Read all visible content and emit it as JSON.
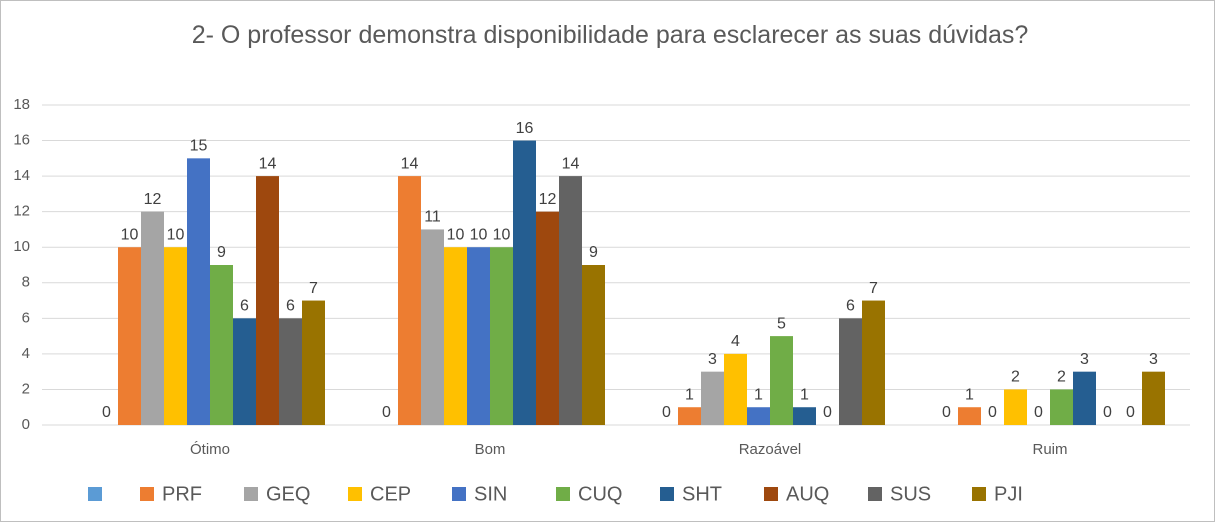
{
  "chart_data": {
    "type": "bar",
    "title": "2- O professor demonstra disponibilidade para esclarecer as suas dúvidas?",
    "categories": [
      "Ótimo",
      "Bom",
      "Razoável",
      "Ruim"
    ],
    "ylim": [
      0,
      18
    ],
    "yticks": [
      0,
      2,
      4,
      6,
      8,
      10,
      12,
      14,
      16,
      18
    ],
    "grid": true,
    "series": [
      {
        "color": "#5b9bd5",
        "values": [
          0,
          0,
          0,
          0
        ]
      },
      {
        "name": "PRF",
        "color": "#ed7d31",
        "values": [
          10,
          14,
          1,
          1
        ]
      },
      {
        "name": "GEQ",
        "color": "#a5a5a5",
        "values": [
          12,
          11,
          3,
          0
        ]
      },
      {
        "name": "CEP",
        "color": "#ffc000",
        "values": [
          10,
          10,
          4,
          2
        ]
      },
      {
        "name": "SIN",
        "color": "#4472c4",
        "values": [
          15,
          10,
          1,
          0
        ]
      },
      {
        "name": "CUQ",
        "color": "#70ad47",
        "values": [
          9,
          10,
          5,
          2
        ]
      },
      {
        "name": "SHT",
        "color": "#255e91",
        "values": [
          6,
          16,
          1,
          3
        ]
      },
      {
        "name": "AUQ",
        "color": "#9e480e",
        "values": [
          14,
          12,
          0,
          0
        ]
      },
      {
        "name": "SUS",
        "color": "#636363",
        "values": [
          6,
          14,
          6,
          0
        ]
      },
      {
        "name": "PJI",
        "color": "#997300",
        "values": [
          7,
          9,
          7,
          3
        ]
      }
    ]
  }
}
